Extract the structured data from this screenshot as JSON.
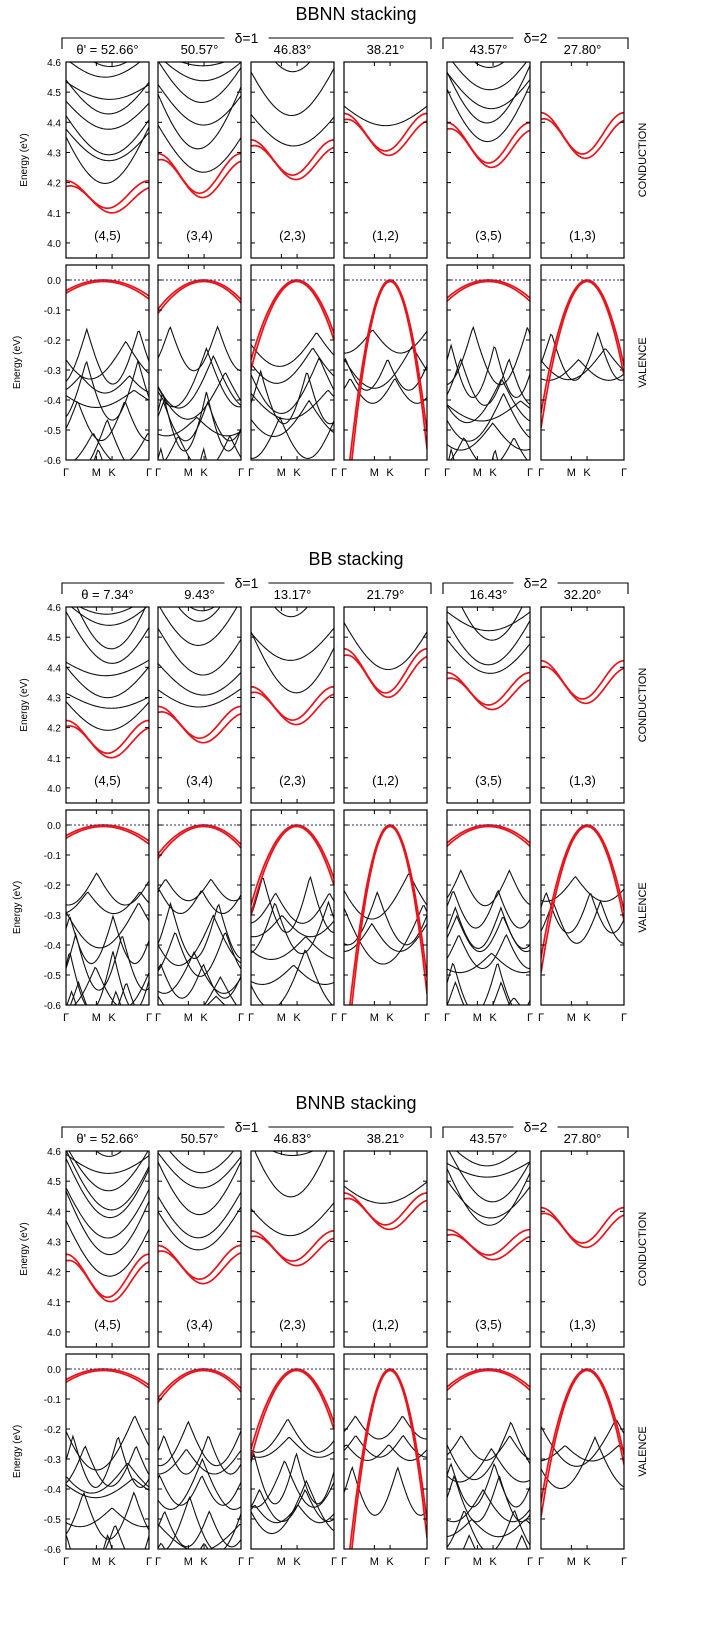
{
  "figure": {
    "colors": {
      "highlight": "#e8141c",
      "band": "#111111",
      "fermi": "#2a2a7a",
      "frame": "#000000"
    },
    "y_axis_label": "Energy (eV)",
    "row_labels": {
      "conduction": "CONDUCTION",
      "valence": "VALENCE"
    },
    "k_ticks": [
      "Γ",
      "M",
      "K",
      "Γ"
    ]
  },
  "chart_data": [
    {
      "type": "line",
      "title": "BBNN stacking",
      "groups": [
        {
          "label": "δ=1",
          "columns": [
            0,
            1,
            2,
            3
          ]
        },
        {
          "label": "δ=2",
          "columns": [
            4,
            5
          ]
        }
      ],
      "angle_label_first": "θ' = 52.66°",
      "angles": [
        "θ' = 52.66°",
        "50.57°",
        "46.83°",
        "38.21°",
        "43.57°",
        "27.80°"
      ],
      "indices": [
        "(4,5)",
        "(3,4)",
        "(2,3)",
        "(1,2)",
        "(3,5)",
        "(1,3)"
      ],
      "conduction": {
        "ylabel": "Energy (eV)",
        "ylim": [
          3.95,
          4.6
        ],
        "yticks": [
          "4.6",
          "4.5",
          "4.4",
          "4.3",
          "4.2",
          "4.1",
          "4.0"
        ]
      },
      "valence": {
        "ylabel": "Energy (eV)",
        "ylim": [
          -0.6,
          0.05
        ],
        "yticks": [
          "0.0",
          "-0.1",
          "-0.2",
          "-0.3",
          "-0.4",
          "-0.5",
          "-0.6"
        ]
      },
      "band_edges": {
        "cbm_eV": [
          4.1,
          4.15,
          4.21,
          4.29,
          4.25,
          4.28
        ],
        "vbm_eV": [
          0.0,
          0.0,
          0.0,
          0.0,
          0.0,
          0.0
        ]
      }
    },
    {
      "type": "line",
      "title": "BB stacking",
      "groups": [
        {
          "label": "δ=1",
          "columns": [
            0,
            1,
            2,
            3
          ]
        },
        {
          "label": "δ=2",
          "columns": [
            4,
            5
          ]
        }
      ],
      "angles": [
        "θ = 7.34°",
        "9.43°",
        "13.17°",
        "21.79°",
        "16.43°",
        "32.20°"
      ],
      "indices": [
        "(4,5)",
        "(3,4)",
        "(2,3)",
        "(1,2)",
        "(3,5)",
        "(1,3)"
      ],
      "conduction": {
        "ylabel": "Energy (eV)",
        "ylim": [
          3.95,
          4.6
        ],
        "yticks": [
          "4.6",
          "4.5",
          "4.4",
          "4.3",
          "4.2",
          "4.1",
          "4.0"
        ]
      },
      "valence": {
        "ylabel": "Energy (eV)",
        "ylim": [
          -0.6,
          0.05
        ],
        "yticks": [
          "0.0",
          "-0.1",
          "-0.2",
          "-0.3",
          "-0.4",
          "-0.5",
          "-0.6"
        ]
      },
      "band_edges": {
        "cbm_eV": [
          4.1,
          4.15,
          4.21,
          4.3,
          4.26,
          4.28
        ],
        "vbm_eV": [
          0.0,
          0.0,
          0.0,
          0.0,
          0.0,
          0.0
        ]
      }
    },
    {
      "type": "line",
      "title": "BNNB stacking",
      "groups": [
        {
          "label": "δ=1",
          "columns": [
            0,
            1,
            2,
            3
          ]
        },
        {
          "label": "δ=2",
          "columns": [
            4,
            5
          ]
        }
      ],
      "angles": [
        "θ' = 52.66°",
        "50.57°",
        "46.83°",
        "38.21°",
        "43.57°",
        "27.80°"
      ],
      "indices": [
        "(4,5)",
        "(3,4)",
        "(2,3)",
        "(1,2)",
        "(3,5)",
        "(1,3)"
      ],
      "conduction": {
        "ylabel": "Energy (eV)",
        "ylim": [
          3.95,
          4.6
        ],
        "yticks": [
          "4.6",
          "4.5",
          "4.4",
          "4.3",
          "4.2",
          "4.1",
          "4.0"
        ]
      },
      "valence": {
        "ylabel": "Energy (eV)",
        "ylim": [
          -0.6,
          0.05
        ],
        "yticks": [
          "0.0",
          "-0.1",
          "-0.2",
          "-0.3",
          "-0.4",
          "-0.5",
          "-0.6"
        ]
      },
      "band_edges": {
        "cbm_eV": [
          4.1,
          4.16,
          4.22,
          4.34,
          4.24,
          4.28
        ],
        "vbm_eV": [
          0.0,
          0.0,
          0.0,
          0.0,
          0.0,
          0.0
        ]
      }
    }
  ]
}
